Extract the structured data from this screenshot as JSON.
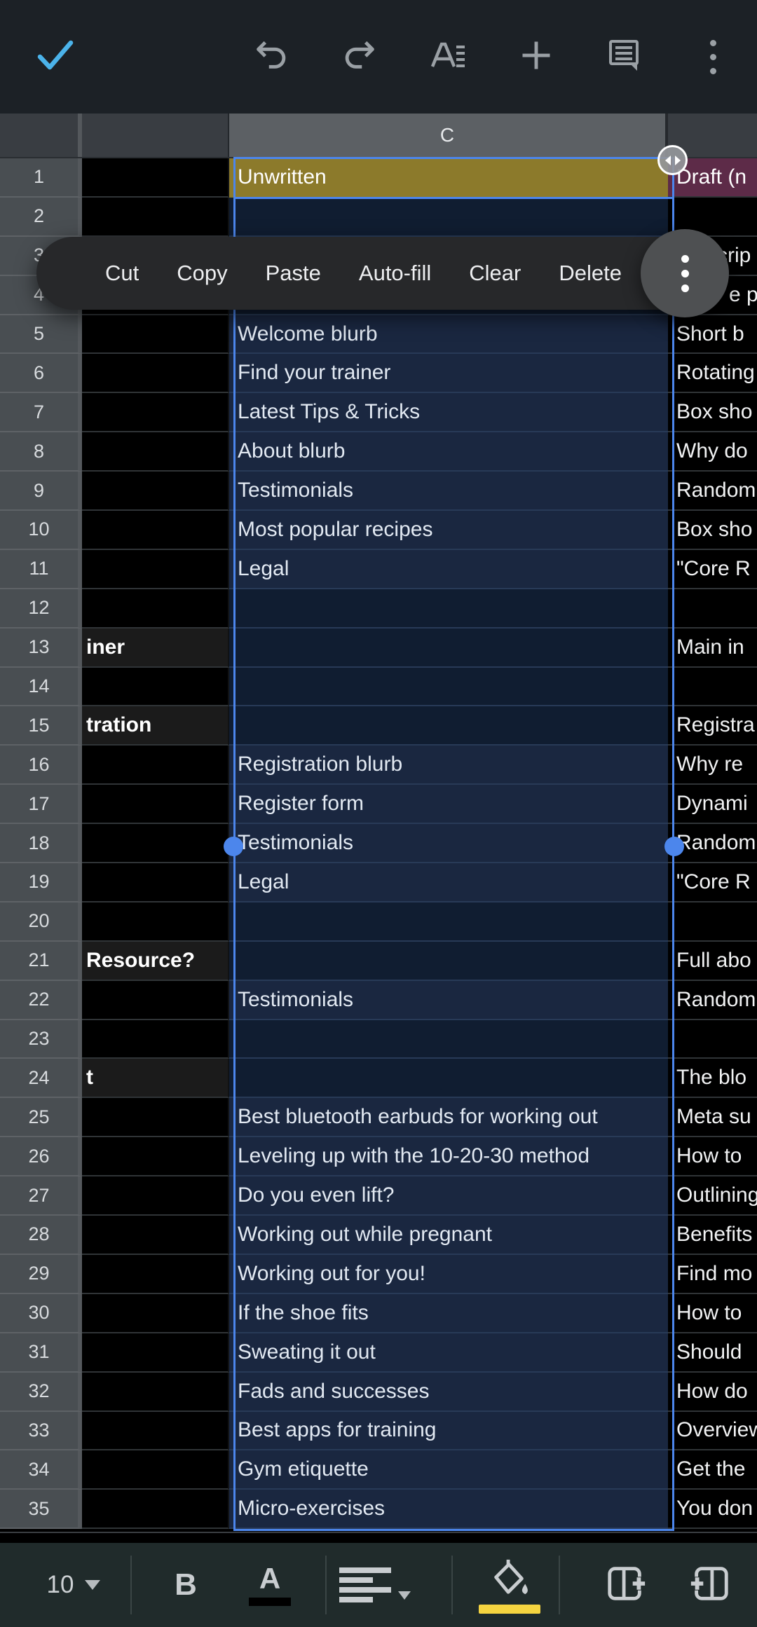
{
  "top_toolbar": {
    "done_check_color": "#4bb3ea",
    "icon_color": "#9aa0a5"
  },
  "context_menu": {
    "items": [
      "Cut",
      "Copy",
      "Paste",
      "Auto-fill",
      "Clear",
      "Delete"
    ]
  },
  "grid": {
    "selected_column_header": "C",
    "selection_color": "#4c86ec",
    "active_cell_fill": "#8c7a2b",
    "d1_fill": "#5d2b48",
    "rows": [
      {
        "n": 1,
        "b": "",
        "c": "Unwritten",
        "d": "Draft (n"
      },
      {
        "n": 2,
        "b": "",
        "c": "",
        "d": ""
      },
      {
        "n": 3,
        "b": "",
        "c": "",
        "d": "crip",
        "d_indent": 58
      },
      {
        "n": 4,
        "b": "",
        "c": "",
        "d": "e p",
        "d_indent": 75
      },
      {
        "n": 5,
        "b": "",
        "c": "Welcome blurb",
        "d": "Short b"
      },
      {
        "n": 6,
        "b": "",
        "c": "Find your trainer",
        "d": "Rotating"
      },
      {
        "n": 7,
        "b": "",
        "c": "Latest Tips & Tricks",
        "d": "Box sho"
      },
      {
        "n": 8,
        "b": "",
        "c": "About blurb",
        "d": "Why do"
      },
      {
        "n": 9,
        "b": "",
        "c": "Testimonials",
        "d": "Random"
      },
      {
        "n": 10,
        "b": "",
        "c": "Most popular recipes",
        "d": "Box sho"
      },
      {
        "n": 11,
        "b": "",
        "c": "Legal",
        "d": "\"Core R"
      },
      {
        "n": 12,
        "b": "",
        "c": "",
        "d": ""
      },
      {
        "n": 13,
        "b": "iner",
        "c": "",
        "d": "Main in"
      },
      {
        "n": 14,
        "b": "",
        "c": "",
        "d": ""
      },
      {
        "n": 15,
        "b": "tration",
        "c": "",
        "d": "Registra"
      },
      {
        "n": 16,
        "b": "",
        "c": "Registration blurb",
        "d": "Why re"
      },
      {
        "n": 17,
        "b": "",
        "c": "Register form",
        "d": "Dynami"
      },
      {
        "n": 18,
        "b": "",
        "c": "Testimonials",
        "d": "Random"
      },
      {
        "n": 19,
        "b": "",
        "c": "Legal",
        "d": "\"Core R"
      },
      {
        "n": 20,
        "b": "",
        "c": "",
        "d": ""
      },
      {
        "n": 21,
        "b": "Resource?",
        "c": "",
        "d": "Full abo"
      },
      {
        "n": 22,
        "b": "",
        "c": "Testimonials",
        "d": "Random"
      },
      {
        "n": 23,
        "b": "",
        "c": "",
        "d": ""
      },
      {
        "n": 24,
        "b": "t",
        "c": "",
        "d": "The blo"
      },
      {
        "n": 25,
        "b": "",
        "c": "Best bluetooth earbuds for working out",
        "d": "Meta su"
      },
      {
        "n": 26,
        "b": "",
        "c": "Leveling up with the 10-20-30 method",
        "d": "How to"
      },
      {
        "n": 27,
        "b": "",
        "c": "Do you even lift?",
        "d": "Outlining"
      },
      {
        "n": 28,
        "b": "",
        "c": "Working out while pregnant",
        "d": "Benefits"
      },
      {
        "n": 29,
        "b": "",
        "c": "Working out for you!",
        "d": "Find mo"
      },
      {
        "n": 30,
        "b": "",
        "c": "If the shoe fits",
        "d": "How to"
      },
      {
        "n": 31,
        "b": "",
        "c": "Sweating it out",
        "d": "Should"
      },
      {
        "n": 32,
        "b": "",
        "c": "Fads and successes",
        "d": "How do"
      },
      {
        "n": 33,
        "b": "",
        "c": "Best apps for training",
        "d": "Overview"
      },
      {
        "n": 34,
        "b": "",
        "c": "Gym etiquette",
        "d": "Get the"
      },
      {
        "n": 35,
        "b": "",
        "c": "Micro-exercises",
        "d": "You don"
      }
    ]
  },
  "bottom_toolbar": {
    "font_size": "10",
    "bold_label": "B",
    "text_color_label": "A",
    "text_color_swatch": "#000000",
    "fill_color_swatch": "#f5d440"
  }
}
